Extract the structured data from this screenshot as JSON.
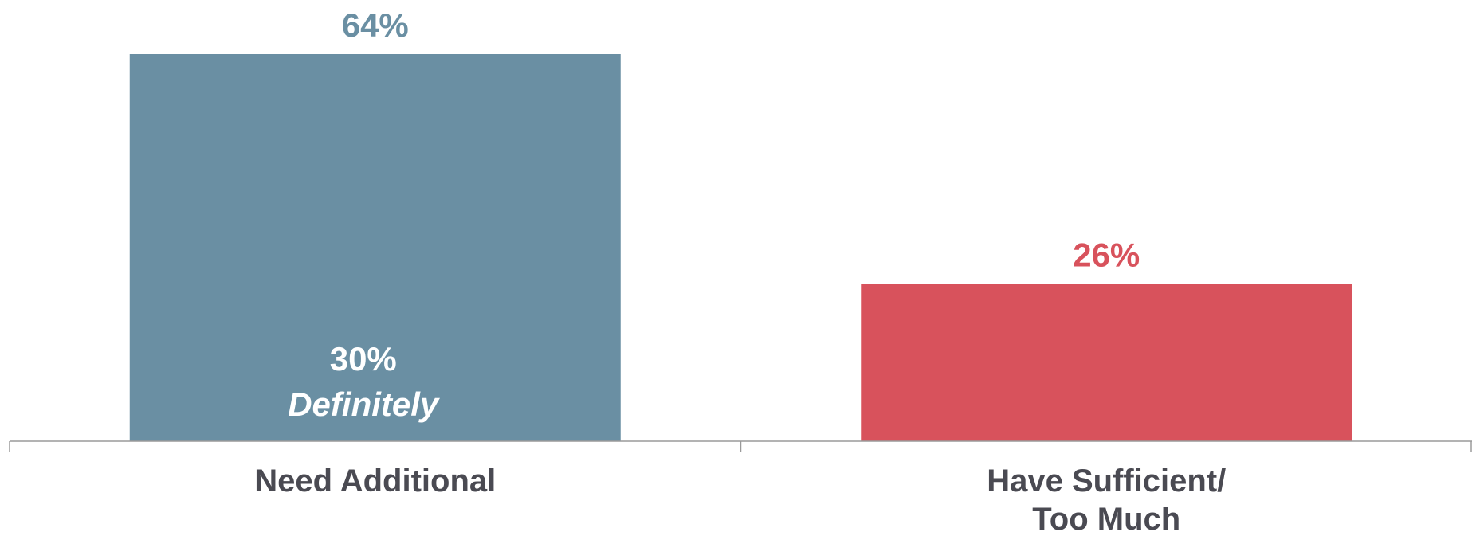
{
  "chart_data": {
    "type": "bar",
    "categories": [
      "Need Additional",
      "Have Sufficient/\nToo Much"
    ],
    "values": [
      64,
      26
    ],
    "value_labels": [
      "64%",
      "26%"
    ],
    "colors": [
      "#6a8fa3",
      "#d8525c"
    ],
    "label_colors": [
      "#6a8fa3",
      "#d8525c"
    ],
    "inner_annotation": {
      "category_index": 0,
      "value": 30,
      "value_label": "30%",
      "text": "Definitely"
    },
    "ylim": [
      0,
      64
    ],
    "grid": false,
    "legend": "none",
    "title": "",
    "xlabel": "",
    "ylabel": ""
  }
}
